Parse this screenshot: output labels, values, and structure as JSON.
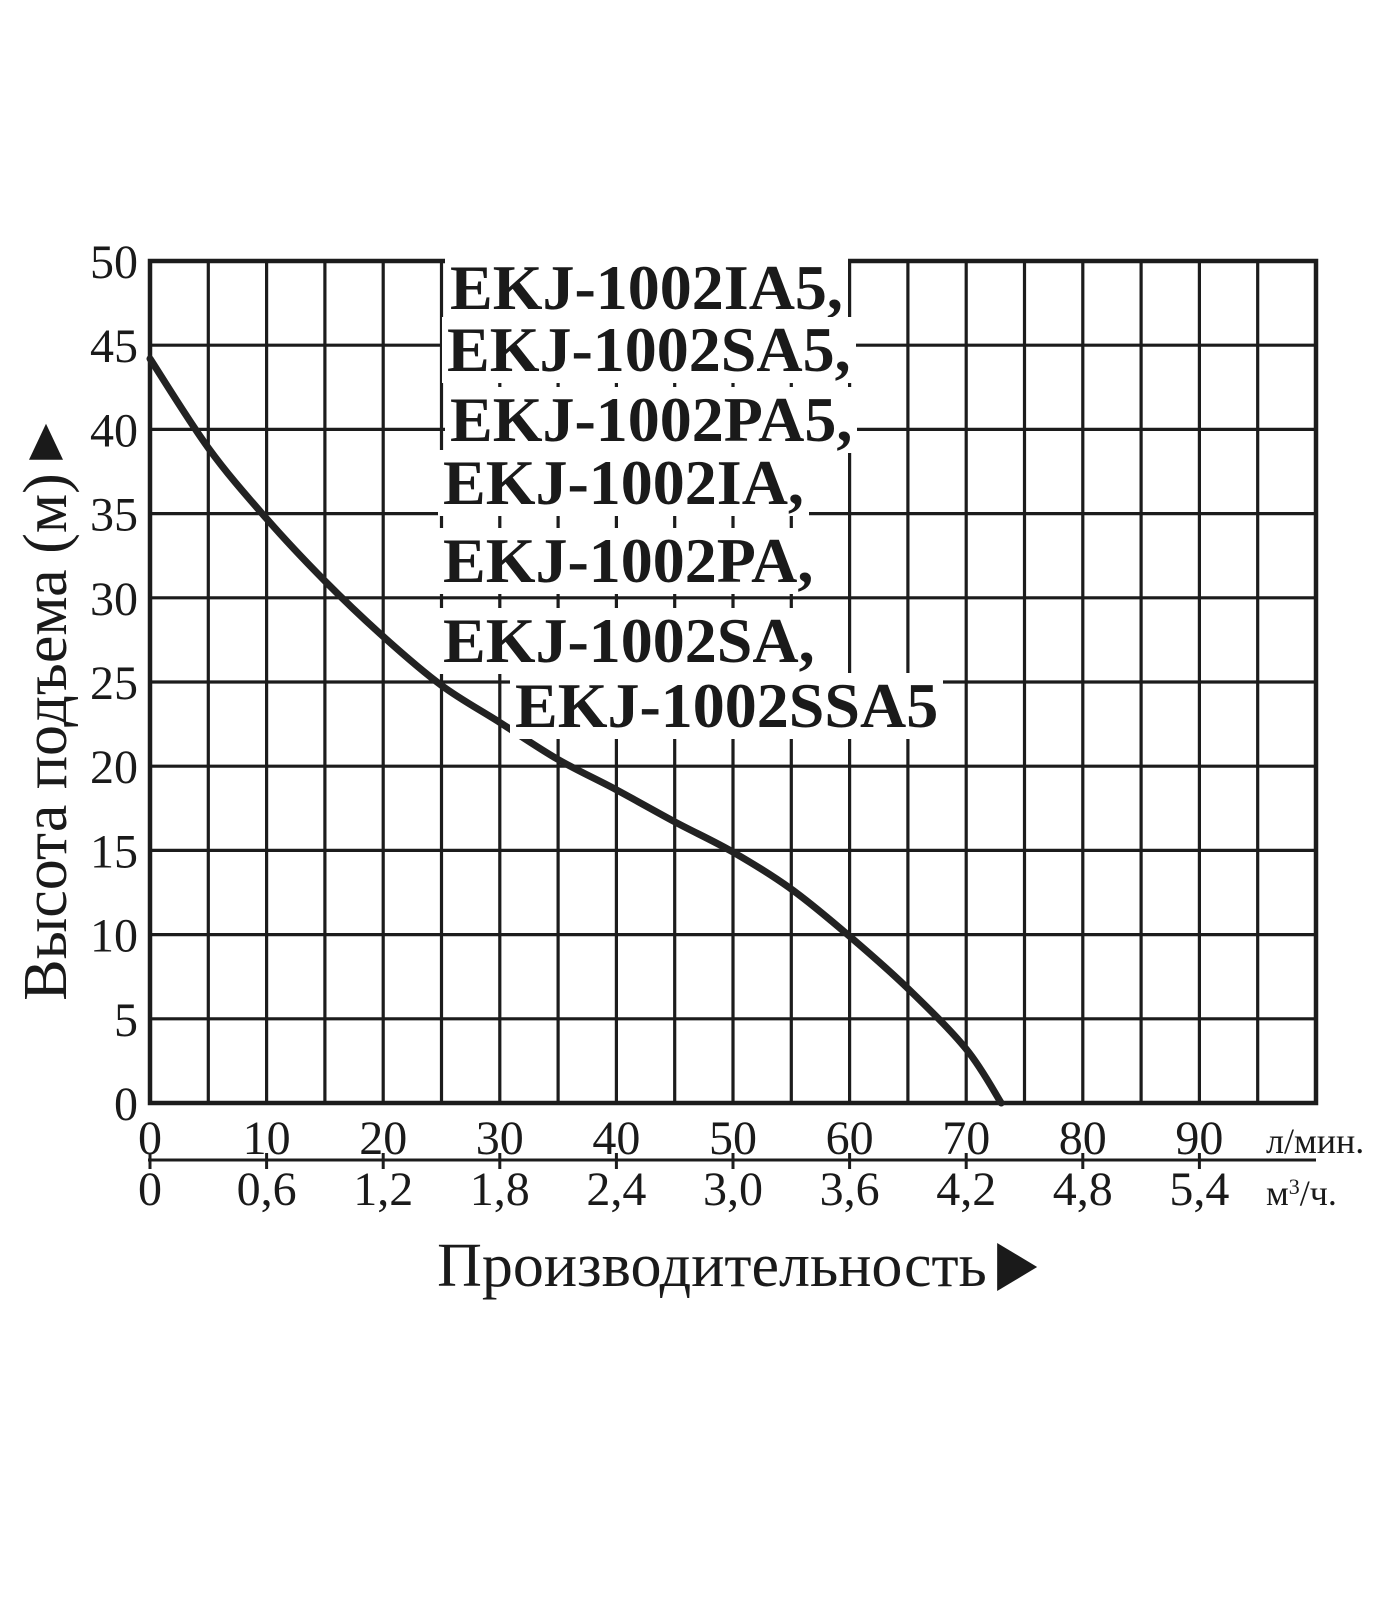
{
  "y_axis": {
    "title": "Высота подъема (м)",
    "tick_labels": [
      "0",
      "5",
      "10",
      "15",
      "20",
      "25",
      "30",
      "35",
      "40",
      "45",
      "50"
    ]
  },
  "x_axis": {
    "title": "Производительность",
    "flow_lpm": {
      "unit": "л/мин.",
      "labels": [
        "0",
        "10",
        "20",
        "30",
        "40",
        "50",
        "60",
        "70",
        "80",
        "90"
      ]
    },
    "flow_m3h": {
      "unit_base": "м",
      "unit_sup": "3",
      "unit_tail": "/ч.",
      "labels": [
        "0",
        "0,6",
        "1,2",
        "1,8",
        "2,4",
        "3,0",
        "3,6",
        "4,2",
        "4,8",
        "5,4"
      ]
    }
  },
  "pump_models": [
    "EKJ-1002IA5,",
    "EKJ-1002SA5,",
    "EKJ-1002PA5,",
    "EKJ-1002IA,",
    "EKJ-1002PA,",
    "EKJ-1002SA,",
    "EKJ-1002SSA5"
  ],
  "colors": {
    "ink": "#1a1a1a",
    "grid": "#1c1c1c",
    "curve": "#222222",
    "background": "#ffffff"
  },
  "chart_data": {
    "type": "line",
    "title": "EKJ-1002 series pump performance curve",
    "xlabel": "Производительность",
    "ylabel": "Высота подъема (м)",
    "x_units": [
      "л/мин.",
      "м³/ч."
    ],
    "xlim": [
      0,
      100
    ],
    "ylim": [
      0,
      50
    ],
    "grid": "on",
    "grid_step_x": 5,
    "grid_step_y": 5,
    "x_ticks_lpm": [
      0,
      10,
      20,
      30,
      40,
      50,
      60,
      70,
      80,
      90
    ],
    "x_ticks_m3h": [
      0,
      0.6,
      1.2,
      1.8,
      2.4,
      3.0,
      3.6,
      4.2,
      4.8,
      5.4
    ],
    "y_ticks": [
      0,
      5,
      10,
      15,
      20,
      25,
      30,
      35,
      40,
      45,
      50
    ],
    "legend_position": "inside-top",
    "series": [
      {
        "name": "EKJ-1002IA5, EKJ-1002SA5, EKJ-1002PA5, EKJ-1002IA, EKJ-1002PA, EKJ-1002SA, EKJ-1002SSA5",
        "x_lpm": [
          0,
          5,
          10,
          15,
          20,
          25,
          30,
          35,
          40,
          45,
          50,
          55,
          60,
          65,
          70,
          73
        ],
        "y_m": [
          44.2,
          38.9,
          34.7,
          31.0,
          27.7,
          24.8,
          22.6,
          20.4,
          18.6,
          16.7,
          14.9,
          12.7,
          9.9,
          6.8,
          3.2,
          0
        ]
      }
    ]
  }
}
